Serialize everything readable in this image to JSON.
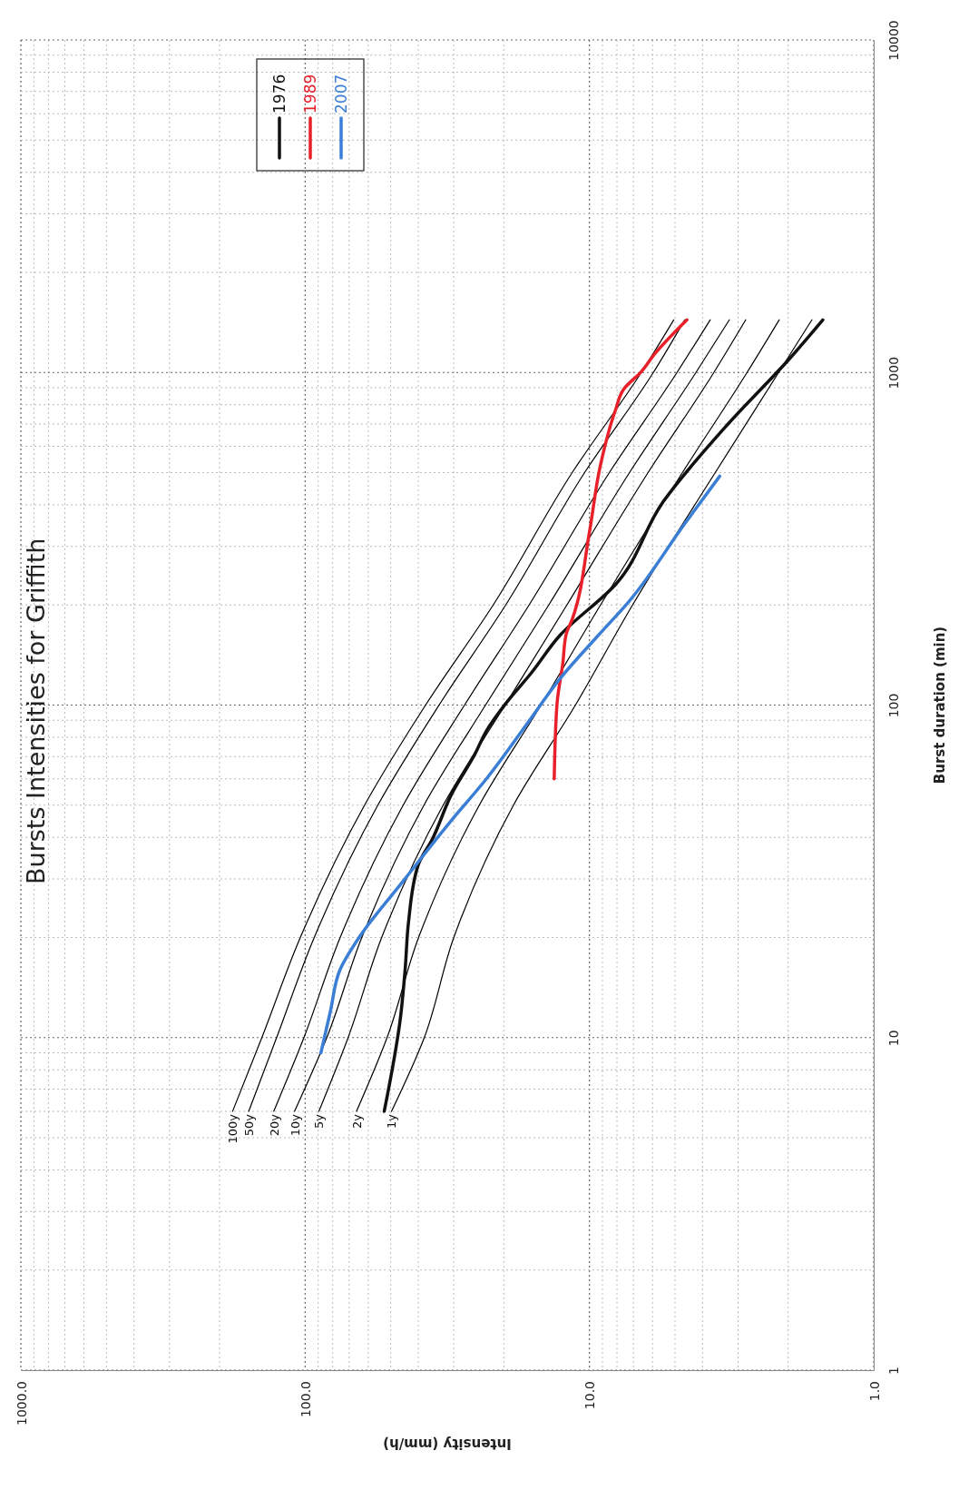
{
  "chart_data": {
    "type": "line",
    "title": "Bursts Intensities for Griffith",
    "xlabel": "Intensity (mm/h)",
    "ylabel": "Burst duration (min)",
    "log": "xy",
    "grid": true,
    "legend": "top left",
    "marker": "none",
    "line_style": "solid",
    "xlim": [
      1000,
      1
    ],
    "ylim": [
      1,
      10000
    ],
    "xticks": [
      {
        "value": 1,
        "label": "1.0"
      },
      {
        "value": 2,
        "label": null
      },
      {
        "value": 3,
        "label": null
      },
      {
        "value": 4,
        "label": null
      },
      {
        "value": 5,
        "label": null
      },
      {
        "value": 6,
        "label": null
      },
      {
        "value": 7,
        "label": null
      },
      {
        "value": 8,
        "label": null
      },
      {
        "value": 9,
        "label": null
      },
      {
        "value": 10,
        "label": "10.0"
      },
      {
        "value": 20,
        "label": null
      },
      {
        "value": 30,
        "label": null
      },
      {
        "value": 40,
        "label": null
      },
      {
        "value": 50,
        "label": null
      },
      {
        "value": 60,
        "label": null
      },
      {
        "value": 70,
        "label": null
      },
      {
        "value": 80,
        "label": null
      },
      {
        "value": 90,
        "label": null
      },
      {
        "value": 100,
        "label": "100.0"
      },
      {
        "value": 200,
        "label": null
      },
      {
        "value": 300,
        "label": null
      },
      {
        "value": 400,
        "label": null
      },
      {
        "value": 500,
        "label": null
      },
      {
        "value": 600,
        "label": null
      },
      {
        "value": 700,
        "label": null
      },
      {
        "value": 800,
        "label": null
      },
      {
        "value": 900,
        "label": null
      },
      {
        "value": 1000,
        "label": "1000.0"
      }
    ],
    "yticks": [
      1,
      {
        "value": 2,
        "label": null
      },
      {
        "value": 3,
        "label": null
      },
      {
        "value": 4,
        "label": null
      },
      {
        "value": 5,
        "label": null
      },
      {
        "value": 6,
        "label": null
      },
      {
        "value": 7,
        "label": null
      },
      {
        "value": 8,
        "label": null
      },
      {
        "value": 9,
        "label": null
      },
      10,
      {
        "value": 20,
        "label": null
      },
      {
        "value": 30,
        "label": null
      },
      {
        "value": 40,
        "label": null
      },
      {
        "value": 50,
        "label": null
      },
      {
        "value": 60,
        "label": null
      },
      {
        "value": 70,
        "label": null
      },
      {
        "value": 80,
        "label": null
      },
      {
        "value": 90,
        "label": null
      },
      100,
      {
        "value": 200,
        "label": null
      },
      {
        "value": 300,
        "label": null
      },
      {
        "value": 400,
        "label": null
      },
      {
        "value": 500,
        "label": null
      },
      {
        "value": 600,
        "label": null
      },
      {
        "value": 700,
        "label": null
      },
      {
        "value": 800,
        "label": null
      },
      {
        "value": 900,
        "label": null
      },
      1000,
      {
        "value": 2000,
        "label": null
      },
      {
        "value": 3000,
        "label": null
      },
      {
        "value": 4000,
        "label": null
      },
      {
        "value": 5000,
        "label": null
      },
      {
        "value": 6000,
        "label": null
      },
      {
        "value": 7000,
        "label": null
      },
      {
        "value": 8000,
        "label": null
      },
      {
        "value": 9000,
        "label": null
      },
      10000
    ],
    "series": [
      {
        "color": "#000000",
        "x": [
          49.7,
          38.1,
          30.0,
          18.5,
          11.2,
          7.05,
          3.61,
          2.16,
          1.65
        ],
        "values": [
          6,
          10,
          20,
          50,
          100,
          200,
          500,
          1000,
          1440
        ]
      },
      {
        "color": "#000000",
        "x": [
          66,
          51.5,
          39.9,
          24.4,
          14.8,
          9.14,
          4.71,
          2.79,
          2.15
        ],
        "values": [
          6,
          10,
          20,
          50,
          100,
          200,
          500,
          1000,
          1440
        ]
      },
      {
        "color": "#000000",
        "x": [
          89.5,
          70.6,
          53.8,
          32.7,
          19.8,
          12.0,
          6.22,
          3.65,
          2.82
        ],
        "values": [
          6,
          10,
          20,
          50,
          100,
          200,
          500,
          1000,
          1440
        ]
      },
      {
        "color": "#000000",
        "x": [
          109,
          83.9,
          63.2,
          38.2,
          23.2,
          13.9,
          7.23,
          4.22,
          3.22
        ],
        "values": [
          6,
          10,
          20,
          50,
          100,
          200,
          500,
          1000,
          1440
        ]
      },
      {
        "color": "#000000",
        "x": [
          129,
          101,
          75.3,
          45.2,
          27.5,
          16.3,
          8.51,
          4.92,
          3.76
        ],
        "values": [
          6,
          10,
          20,
          50,
          100,
          200,
          500,
          1000,
          1440
        ]
      },
      {
        "color": "#000000",
        "x": [
          158,
          126,
          92.9,
          55.5,
          33.8,
          19.7,
          10.4,
          5.96,
          4.62
        ],
        "values": [
          6,
          10,
          20,
          50,
          100,
          200,
          500,
          1000,
          1440
        ]
      },
      {
        "color": "#000000",
        "x": [
          180,
          142,
          104,
          61.8,
          37.7,
          21.8,
          11.5,
          6.57,
          5.05
        ],
        "values": [
          6,
          10,
          20,
          50,
          100,
          200,
          500,
          1000,
          1440
        ]
      },
      {
        "name": "1976",
        "color": "#111111",
        "x": [
          52.7,
          46.2,
          44.5,
          43.3,
          40.0,
          35.7,
          30.6,
          25.2,
          23.0,
          19.7,
          16.0,
          12.7,
          8.11,
          5.51,
          3.25,
          1.98,
          1.51
        ],
        "values": [
          6,
          11.5,
          16,
          22.2,
          33.1,
          39.5,
          53.8,
          71.6,
          83.8,
          101,
          125,
          162,
          230,
          408,
          701,
          1099,
          1440
        ]
      },
      {
        "name": "1989",
        "color": "#e8202a",
        "x": [
          13.3,
          13.0,
          12.4,
          12.1,
          11.5,
          10.0,
          9.18,
          8.11,
          7.56,
          6.57,
          5.91,
          4.54
        ],
        "values": [
          60,
          101,
          134,
          162,
          181,
          331,
          519,
          768,
          893,
          1006,
          1134,
          1440
        ]
      },
      {
        "name": "2007",
        "color": "#3a7fd5",
        "x": [
          88,
          81.5,
          75.4,
          64.6,
          45.0,
          30.5,
          23.0,
          16.0,
          12.8,
          9.31,
          7.29,
          4.62,
          3.48
        ],
        "values": [
          9,
          12,
          16,
          20,
          29.7,
          45.1,
          60.1,
          91.6,
          119,
          162,
          204,
          351,
          488
        ]
      }
    ],
    "annotations": [
      {
        "text": "1y",
        "x": 49.7,
        "y": 6
      },
      {
        "text": "2y",
        "x": 66,
        "y": 6
      },
      {
        "text": "5y",
        "x": 89.5,
        "y": 6
      },
      {
        "text": "10y",
        "x": 109,
        "y": 6
      },
      {
        "text": "20y",
        "x": 129,
        "y": 6
      },
      {
        "text": "50y",
        "x": 158,
        "y": 6
      },
      {
        "text": "100y",
        "x": 180,
        "y": 6
      }
    ]
  }
}
